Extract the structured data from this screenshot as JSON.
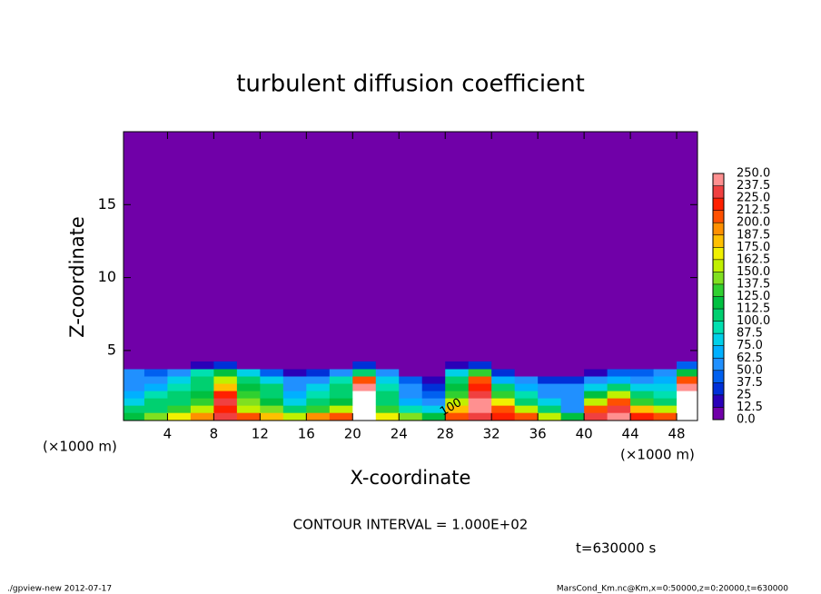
{
  "chart_data": {
    "type": "heatmap",
    "title": "turbulent diffusion coefficient",
    "xlabel": "X-coordinate",
    "ylabel": "Z-coordinate",
    "x_unit_label": "(×1000 m)",
    "contour_interval": "CONTOUR INTERVAL = 1.000E+02",
    "contour_label": "100",
    "time_label": "t=630000 s",
    "footer_left": "./gpview-new  2012-07-17",
    "footer_right": "MarsCond_Km.nc@Km,x=0:50000,z=0:20000,t=630000",
    "xlim": [
      0.2,
      49.8
    ],
    "ylim": [
      0.2,
      20
    ],
    "xticks": [
      4,
      8,
      12,
      16,
      20,
      24,
      28,
      32,
      36,
      40,
      44,
      48
    ],
    "yticks": [
      5,
      10,
      15
    ],
    "x": [
      1,
      3,
      5,
      7,
      9,
      11,
      13,
      15,
      17,
      19,
      21,
      23,
      25,
      27,
      29,
      31,
      33,
      35,
      37,
      39,
      41,
      43,
      45,
      47,
      49
    ],
    "y": [
      0.5,
      1.0,
      1.5,
      2.0,
      2.5,
      3.0,
      3.5,
      4.0
    ],
    "z": [
      [
        120,
        140,
        170,
        190,
        230,
        200,
        180,
        160,
        190,
        200,
        260,
        170,
        140,
        120,
        200,
        230,
        220,
        200,
        160,
        120,
        230,
        240,
        220,
        200,
        250
      ],
      [
        100,
        110,
        130,
        150,
        220,
        160,
        140,
        110,
        130,
        150,
        260,
        130,
        90,
        80,
        180,
        240,
        210,
        150,
        110,
        60,
        200,
        230,
        180,
        150,
        260
      ],
      [
        80,
        100,
        110,
        130,
        230,
        140,
        120,
        80,
        100,
        120,
        260,
        110,
        70,
        50,
        160,
        240,
        170,
        110,
        80,
        60,
        160,
        210,
        130,
        100,
        260
      ],
      [
        70,
        90,
        100,
        120,
        220,
        130,
        110,
        70,
        90,
        110,
        250,
        100,
        60,
        40,
        130,
        230,
        130,
        90,
        60,
        60,
        120,
        160,
        100,
        90,
        250
      ],
      [
        60,
        70,
        90,
        110,
        180,
        120,
        100,
        60,
        80,
        100,
        240,
        90,
        50,
        30,
        120,
        220,
        100,
        70,
        50,
        50,
        80,
        110,
        80,
        80,
        240
      ],
      [
        60,
        60,
        80,
        100,
        150,
        110,
        80,
        50,
        60,
        90,
        200,
        80,
        40,
        20,
        110,
        200,
        70,
        50,
        30,
        30,
        50,
        70,
        60,
        70,
        200
      ],
      [
        50,
        40,
        50,
        90,
        120,
        80,
        40,
        20,
        30,
        60,
        110,
        50,
        10,
        10,
        80,
        130,
        30,
        10,
        5,
        5,
        20,
        40,
        40,
        60,
        120
      ],
      [
        5,
        5,
        5,
        20,
        30,
        10,
        5,
        0,
        5,
        10,
        30,
        10,
        0,
        0,
        20,
        30,
        5,
        0,
        0,
        0,
        0,
        5,
        5,
        10,
        40
      ]
    ],
    "levels": [
      {
        "value": 0,
        "label": "0.0"
      },
      12.5,
      25,
      37.5,
      {
        "value": 50,
        "label": "50.0"
      },
      62.5,
      {
        "value": 75,
        "label": "75.0"
      },
      87.5,
      {
        "value": 100,
        "label": "100.0"
      },
      112.5,
      {
        "value": 125,
        "label": "125.0"
      },
      137.5,
      {
        "value": 150,
        "label": "150.0"
      },
      162.5,
      {
        "value": 175,
        "label": "175.0"
      },
      187.5,
      {
        "value": 200,
        "label": "200.0"
      },
      212.5,
      {
        "value": 225,
        "label": "225.0"
      },
      237.5,
      {
        "value": 250,
        "label": "250.0"
      }
    ],
    "colors": [
      "#7000a8",
      "#2a00b8",
      "#0030d8",
      "#0060f0",
      "#2090ff",
      "#00b0ff",
      "#00d0e8",
      "#00e0b0",
      "#00d070",
      "#00c040",
      "#30d030",
      "#80e020",
      "#c0f000",
      "#f0f000",
      "#ffc000",
      "#ff9000",
      "#ff5000",
      "#ff2000",
      "#f04040",
      "#ff9090"
    ],
    "over_color": "#ffffff"
  }
}
